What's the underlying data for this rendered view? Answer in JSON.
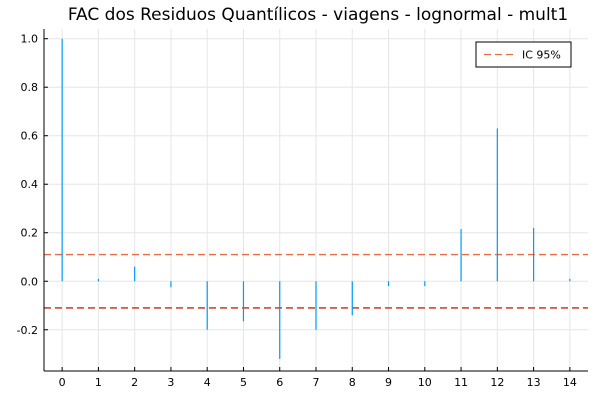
{
  "chart_data": {
    "type": "bar",
    "title": "FAC dos Residuos Quantílicos - viagens - lognormal - mult1",
    "xlabel": "",
    "ylabel": "",
    "x": [
      0,
      1,
      2,
      3,
      4,
      5,
      6,
      7,
      8,
      9,
      10,
      11,
      12,
      13,
      14
    ],
    "values": [
      1.0,
      0.01,
      0.06,
      -0.025,
      -0.2,
      -0.165,
      -0.32,
      -0.2,
      -0.14,
      -0.02,
      -0.02,
      0.215,
      0.63,
      0.22,
      0.01
    ],
    "xlim": [
      -0.5,
      14.5
    ],
    "ylim": [
      -0.37,
      1.04
    ],
    "xticks": [
      "0",
      "1",
      "2",
      "3",
      "4",
      "5",
      "6",
      "7",
      "8",
      "9",
      "10",
      "11",
      "12",
      "13",
      "14"
    ],
    "yticks": [
      {
        "value": -0.2,
        "label": "-0.2"
      },
      {
        "value": 0.0,
        "label": "0.0"
      },
      {
        "value": 0.2,
        "label": "0.2"
      },
      {
        "value": 0.4,
        "label": "0.4"
      },
      {
        "value": 0.6,
        "label": "0.6"
      },
      {
        "value": 0.8,
        "label": "0.8"
      },
      {
        "value": 1.0,
        "label": "1.0"
      }
    ],
    "confidence_interval": {
      "upper": 0.11,
      "lower": -0.11,
      "label": "IC 95%"
    },
    "grid": true,
    "legend_position": "top-right",
    "colors": {
      "bars": "#009af9",
      "ci": "#e26f46",
      "ci_lower": "#c3271a"
    }
  }
}
